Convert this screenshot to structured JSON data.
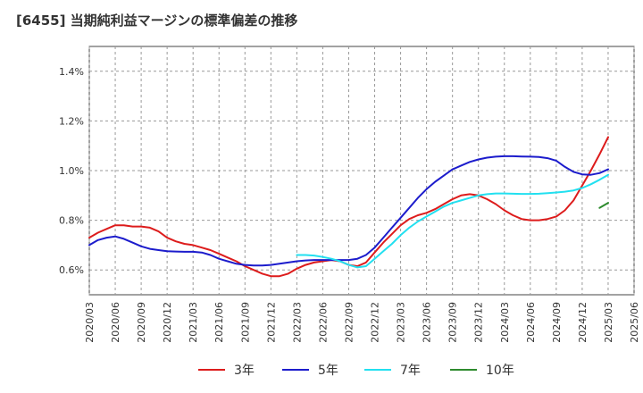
{
  "chart_data": {
    "type": "line",
    "title": "[6455]  当期純利益マージンの標準偏差の推移",
    "xlabel": "",
    "ylabel": "",
    "ylim": [
      0.5,
      1.5
    ],
    "y_ticks": [
      0.6,
      0.8,
      1.0,
      1.2,
      1.4
    ],
    "y_tick_labels": [
      "0.6%",
      "0.8%",
      "1.0%",
      "1.2%",
      "1.4%"
    ],
    "x_tick_labels": [
      "2020/03",
      "2020/06",
      "2020/09",
      "2020/12",
      "2021/03",
      "2021/06",
      "2021/09",
      "2021/12",
      "2022/03",
      "2022/06",
      "2022/09",
      "2022/12",
      "2023/03",
      "2023/06",
      "2023/09",
      "2023/12",
      "2024/03",
      "2024/06",
      "2024/09",
      "2024/12",
      "2025/03",
      "2025/06"
    ],
    "grid": true,
    "legend_position": "bottom",
    "x": [
      "2020/03",
      "2020/04",
      "2020/05",
      "2020/06",
      "2020/07",
      "2020/08",
      "2020/09",
      "2020/10",
      "2020/11",
      "2020/12",
      "2021/01",
      "2021/02",
      "2021/03",
      "2021/04",
      "2021/05",
      "2021/06",
      "2021/07",
      "2021/08",
      "2021/09",
      "2021/10",
      "2021/11",
      "2021/12",
      "2022/01",
      "2022/02",
      "2022/03",
      "2022/04",
      "2022/05",
      "2022/06",
      "2022/07",
      "2022/08",
      "2022/09",
      "2022/10",
      "2022/11",
      "2022/12",
      "2023/01",
      "2023/02",
      "2023/03",
      "2023/04",
      "2023/05",
      "2023/06",
      "2023/07",
      "2023/08",
      "2023/09",
      "2023/10",
      "2023/11",
      "2023/12",
      "2024/01",
      "2024/02",
      "2024/03",
      "2024/04",
      "2024/05",
      "2024/06",
      "2024/07",
      "2024/08",
      "2024/09",
      "2024/10",
      "2024/11",
      "2024/12",
      "2025/01",
      "2025/02",
      "2025/03"
    ],
    "series": [
      {
        "name": "3年",
        "color": "#dd1c1c",
        "values": [
          0.73,
          0.75,
          0.765,
          0.78,
          0.78,
          0.775,
          0.775,
          0.77,
          0.755,
          0.73,
          0.715,
          0.705,
          0.7,
          0.69,
          0.68,
          0.665,
          0.65,
          0.635,
          0.615,
          0.6,
          0.585,
          0.575,
          0.575,
          0.585,
          0.605,
          0.62,
          0.63,
          0.635,
          0.64,
          0.635,
          0.62,
          0.615,
          0.63,
          0.67,
          0.71,
          0.745,
          0.78,
          0.805,
          0.82,
          0.83,
          0.845,
          0.865,
          0.885,
          0.9,
          0.905,
          0.9,
          0.885,
          0.865,
          0.84,
          0.82,
          0.805,
          0.8,
          0.8,
          0.805,
          0.815,
          0.84,
          0.88,
          0.94,
          1.0,
          1.065,
          1.135
        ]
      },
      {
        "name": "5年",
        "color": "#1c1ccc",
        "values": [
          0.7,
          0.72,
          0.73,
          0.735,
          0.725,
          0.71,
          0.695,
          0.685,
          0.68,
          0.675,
          0.674,
          0.673,
          0.673,
          0.67,
          0.66,
          0.645,
          0.635,
          0.625,
          0.62,
          0.618,
          0.618,
          0.62,
          0.625,
          0.63,
          0.635,
          0.638,
          0.64,
          0.64,
          0.64,
          0.64,
          0.64,
          0.645,
          0.66,
          0.69,
          0.73,
          0.77,
          0.81,
          0.85,
          0.89,
          0.925,
          0.955,
          0.98,
          1.005,
          1.02,
          1.035,
          1.045,
          1.052,
          1.056,
          1.058,
          1.058,
          1.057,
          1.056,
          1.055,
          1.05,
          1.04,
          1.015,
          0.995,
          0.985,
          0.983,
          0.99,
          1.005
        ]
      },
      {
        "name": "7年",
        "color": "#22e0f0",
        "values": [
          null,
          null,
          null,
          null,
          null,
          null,
          null,
          null,
          null,
          null,
          null,
          null,
          null,
          null,
          null,
          null,
          null,
          null,
          null,
          null,
          null,
          null,
          null,
          null,
          0.66,
          0.66,
          0.658,
          0.652,
          0.645,
          0.635,
          0.62,
          0.61,
          0.615,
          0.645,
          0.675,
          0.705,
          0.74,
          0.77,
          0.795,
          0.815,
          0.835,
          0.855,
          0.87,
          0.88,
          0.89,
          0.9,
          0.905,
          0.908,
          0.908,
          0.907,
          0.906,
          0.906,
          0.907,
          0.909,
          0.912,
          0.915,
          0.92,
          0.93,
          0.945,
          0.963,
          0.983
        ]
      },
      {
        "name": "10年",
        "color": "#2e8b2e",
        "values": [
          null,
          null,
          null,
          null,
          null,
          null,
          null,
          null,
          null,
          null,
          null,
          null,
          null,
          null,
          null,
          null,
          null,
          null,
          null,
          null,
          null,
          null,
          null,
          null,
          null,
          null,
          null,
          null,
          null,
          null,
          null,
          null,
          null,
          null,
          null,
          null,
          null,
          null,
          null,
          null,
          null,
          null,
          null,
          null,
          null,
          null,
          null,
          null,
          null,
          null,
          null,
          null,
          null,
          null,
          null,
          null,
          null,
          null,
          null,
          0.85,
          0.87
        ]
      }
    ]
  }
}
